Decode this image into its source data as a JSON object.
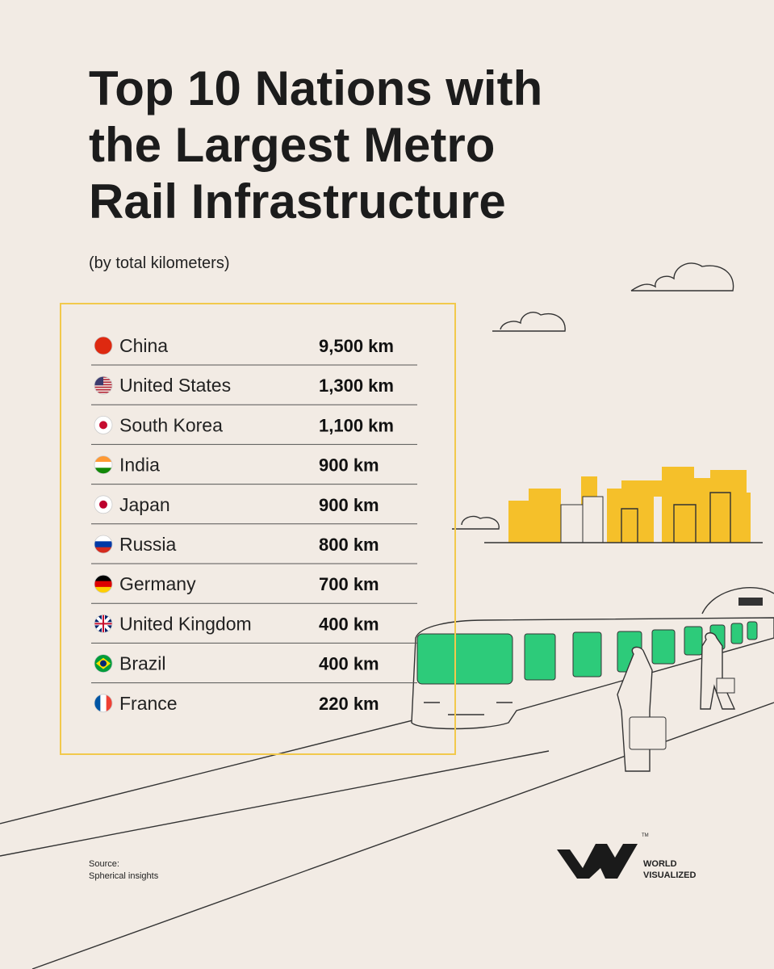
{
  "header": {
    "title_lines": [
      "Top 10 Nations with",
      "the Largest Metro",
      "Rail Infrastructure"
    ],
    "subtitle": "(by total kilometers)"
  },
  "table": {
    "rows": [
      [
        "China",
        "9,500 km"
      ],
      [
        "United States",
        "1,300 km"
      ],
      [
        "South Korea",
        "1,100 km"
      ],
      [
        "India",
        "900 km"
      ],
      [
        "Japan",
        "900 km"
      ],
      [
        "Russia",
        "800 km"
      ],
      [
        "Germany",
        "700 km"
      ],
      [
        "United Kingdom",
        "400 km"
      ],
      [
        "Brazil",
        "400 km"
      ],
      [
        "France",
        "220 km"
      ]
    ]
  },
  "footer": {
    "source_label": "Source:",
    "source": "Spherical insights",
    "brand_lines": [
      "WORLD",
      "VISUALIZED"
    ],
    "trademark": "TM"
  }
}
